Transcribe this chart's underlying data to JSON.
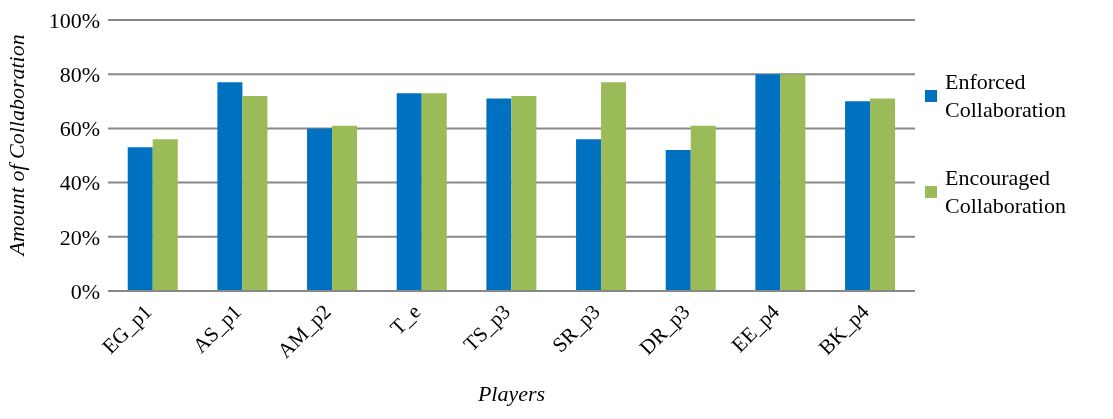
{
  "chart_data": {
    "type": "bar",
    "xlabel": "Players",
    "ylabel": "Amount of Collaboration",
    "categories": [
      "EG_p1",
      "AS_p1",
      "AM_p2",
      "T_e",
      "TS_p3",
      "SR_p3",
      "DR_p3",
      "EE_p4",
      "BK_p4"
    ],
    "series": [
      {
        "name": "Enforced Collaboration",
        "color": "#0070c0",
        "values": [
          53,
          77,
          60,
          73,
          71,
          56,
          52,
          80,
          70
        ]
      },
      {
        "name": "Encouraged Collaboration",
        "color": "#9bbb59",
        "values": [
          56,
          72,
          61,
          73,
          72,
          77,
          61,
          80,
          71
        ]
      }
    ],
    "ylim": [
      0,
      100
    ],
    "yticks": [
      {
        "value": 0,
        "label": "0%"
      },
      {
        "value": 20,
        "label": "20%"
      },
      {
        "value": 40,
        "label": "40%"
      },
      {
        "value": 60,
        "label": "60%"
      },
      {
        "value": 80,
        "label": "80%"
      },
      {
        "value": 100,
        "label": "100%"
      }
    ],
    "grid": "y",
    "legend": "right"
  }
}
